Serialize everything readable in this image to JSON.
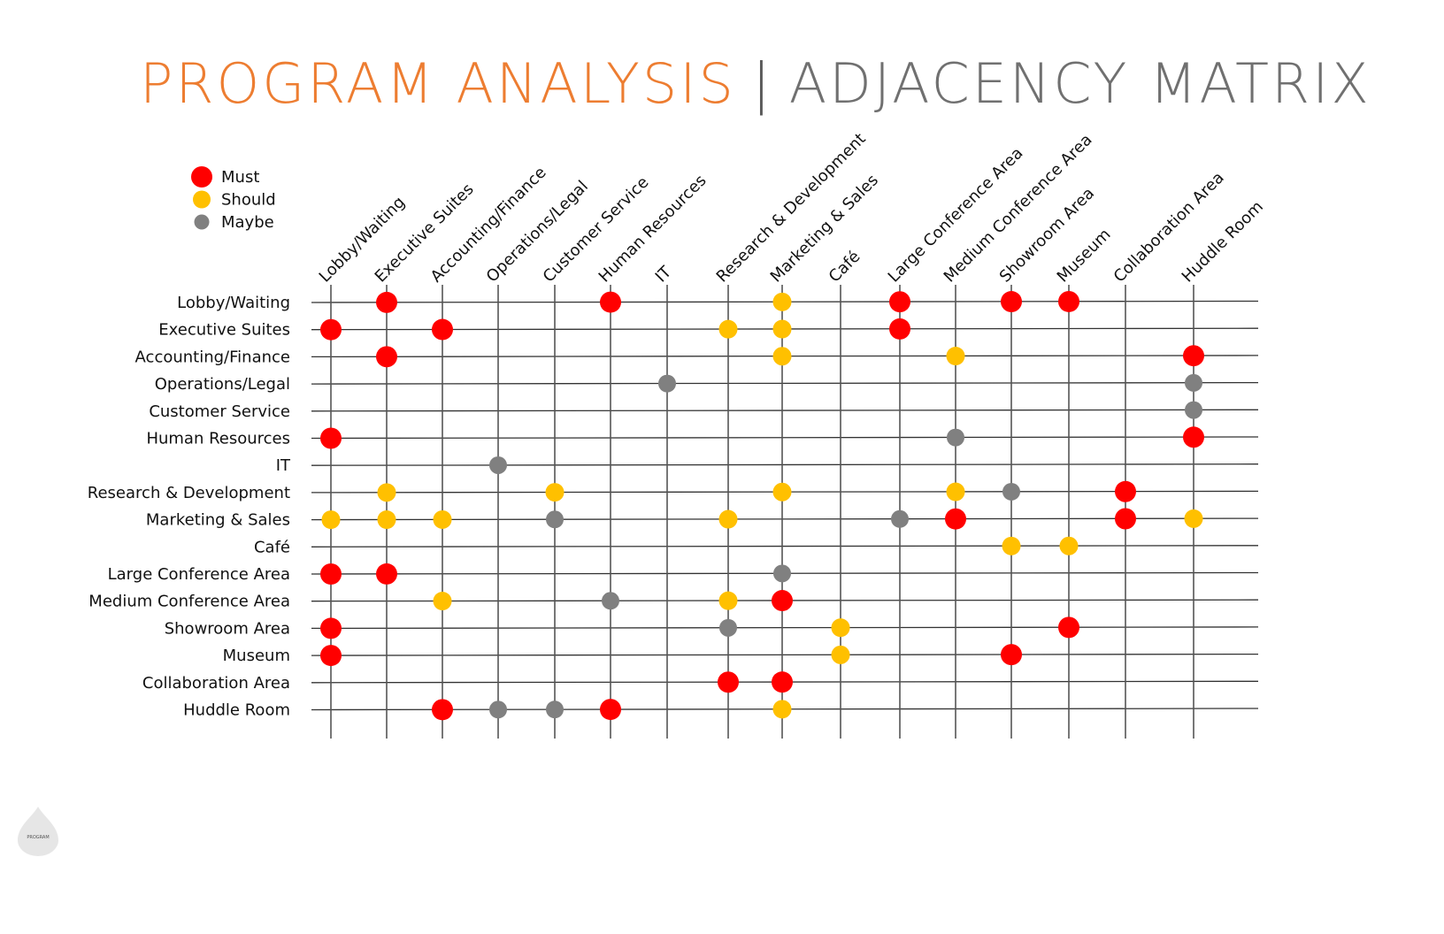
{
  "title": {
    "left": "PROGRAM ANALYSIS",
    "separator": "|",
    "right": "ADJACENCY MATRIX"
  },
  "colors": {
    "must": "#FF0000",
    "should": "#FFC000",
    "maybe": "#808080",
    "title_accent": "#ED7D31",
    "title_gray": "#707070"
  },
  "legend": [
    {
      "level": "must",
      "label": "Must"
    },
    {
      "level": "should",
      "label": "Should"
    },
    {
      "level": "maybe",
      "label": "Maybe"
    }
  ],
  "spaces": [
    "Lobby/Waiting",
    "Executive Suites",
    "Accounting/Finance",
    "Operations/Legal",
    "Customer Service",
    "Human Resources",
    "IT",
    "Research & Development",
    "Marketing  & Sales",
    "Café",
    "Large Conference Area",
    "Medium Conference Area",
    "Showroom Area",
    "Museum",
    "Collaboration Area",
    "Huddle Room"
  ],
  "column_labels": [
    "Lobby/Waiting",
    "Executive Suites",
    "Accounting/Finance",
    "Operations/Legal",
    "Customer Service",
    "Human Resources",
    "IT",
    "Research & Development",
    "Marketing & Sales",
    "Café",
    "Large Conference Area",
    "Medium Conference Area",
    "Showroom Area",
    "Museum",
    "Collaboration Area",
    "Huddle Room"
  ],
  "matrix": [
    [
      [
        1,
        "must"
      ],
      [
        5,
        "must"
      ],
      [
        8,
        "should"
      ],
      [
        10,
        "must"
      ],
      [
        12,
        "must"
      ],
      [
        13,
        "must"
      ]
    ],
    [
      [
        0,
        "must"
      ],
      [
        2,
        "must"
      ],
      [
        7,
        "should"
      ],
      [
        8,
        "should"
      ],
      [
        10,
        "must"
      ]
    ],
    [
      [
        1,
        "must"
      ],
      [
        8,
        "should"
      ],
      [
        11,
        "should"
      ],
      [
        15,
        "must"
      ]
    ],
    [
      [
        6,
        "maybe"
      ],
      [
        15,
        "maybe"
      ]
    ],
    [
      [
        15,
        "maybe"
      ]
    ],
    [
      [
        0,
        "must"
      ],
      [
        11,
        "maybe"
      ],
      [
        15,
        "must"
      ]
    ],
    [
      [
        3,
        "maybe"
      ]
    ],
    [
      [
        1,
        "should"
      ],
      [
        4,
        "should"
      ],
      [
        8,
        "should"
      ],
      [
        11,
        "should"
      ],
      [
        12,
        "maybe"
      ],
      [
        14,
        "must"
      ]
    ],
    [
      [
        0,
        "should"
      ],
      [
        1,
        "should"
      ],
      [
        2,
        "should"
      ],
      [
        4,
        "maybe"
      ],
      [
        7,
        "should"
      ],
      [
        10,
        "maybe"
      ],
      [
        11,
        "must"
      ],
      [
        14,
        "must"
      ],
      [
        15,
        "should"
      ]
    ],
    [
      [
        12,
        "should"
      ],
      [
        13,
        "should"
      ]
    ],
    [
      [
        0,
        "must"
      ],
      [
        1,
        "must"
      ],
      [
        8,
        "maybe"
      ]
    ],
    [
      [
        2,
        "should"
      ],
      [
        5,
        "maybe"
      ],
      [
        7,
        "should"
      ],
      [
        8,
        "must"
      ]
    ],
    [
      [
        0,
        "must"
      ],
      [
        7,
        "maybe"
      ],
      [
        9,
        "should"
      ],
      [
        13,
        "must"
      ]
    ],
    [
      [
        0,
        "must"
      ],
      [
        9,
        "should"
      ],
      [
        12,
        "must"
      ]
    ],
    [
      [
        7,
        "must"
      ],
      [
        8,
        "must"
      ]
    ],
    [
      [
        2,
        "must"
      ],
      [
        3,
        "maybe"
      ],
      [
        4,
        "maybe"
      ],
      [
        5,
        "must"
      ],
      [
        8,
        "should"
      ]
    ]
  ],
  "logo_text": "PROGRAM"
}
